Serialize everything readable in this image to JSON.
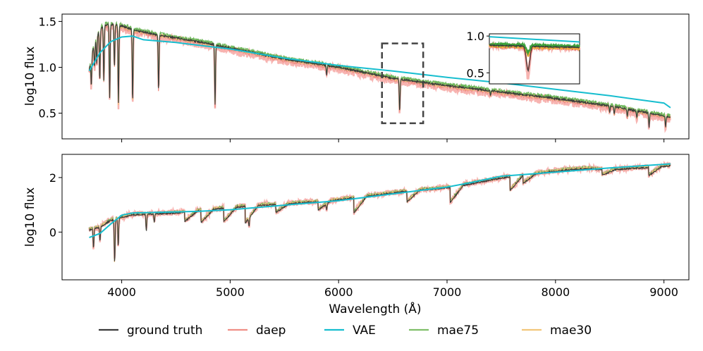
{
  "chart_data": [
    {
      "type": "line",
      "panel": "top",
      "ylabel": "log10 flux",
      "xlim": [
        3450,
        9230
      ],
      "ylim": [
        0.22,
        1.58
      ],
      "xticks": [
        4000,
        5000,
        6000,
        7000,
        8000,
        9000
      ],
      "yticks": [
        {
          "value": 0.5,
          "label": "0.5"
        },
        {
          "value": 1.0,
          "label": "1.0"
        },
        {
          "value": 1.5,
          "label": "1.5"
        }
      ],
      "continuum": {
        "x": [
          3700,
          3750,
          3800,
          3850,
          3900,
          3950,
          4000,
          4050,
          4100,
          4300,
          4500,
          4700,
          5000,
          5500,
          6000,
          6500,
          7000,
          7500,
          8000,
          8500,
          9000,
          9060
        ],
        "y": [
          0.97,
          1.28,
          1.42,
          1.46,
          1.47,
          1.46,
          1.45,
          1.43,
          1.41,
          1.36,
          1.32,
          1.28,
          1.21,
          1.09,
          1.0,
          0.88,
          0.8,
          0.73,
          0.66,
          0.58,
          0.47,
          0.46
        ]
      },
      "absorption_lines": [
        {
          "x": 3720,
          "depth": 0.3
        },
        {
          "x": 3750,
          "depth": 0.28
        },
        {
          "x": 3770,
          "depth": 0.3
        },
        {
          "x": 3798,
          "depth": 0.55
        },
        {
          "x": 3835,
          "depth": 0.6
        },
        {
          "x": 3889,
          "depth": 0.8
        },
        {
          "x": 3933,
          "depth": 0.45
        },
        {
          "x": 3970,
          "depth": 0.85
        },
        {
          "x": 4101,
          "depth": 0.78
        },
        {
          "x": 4340,
          "depth": 0.6
        },
        {
          "x": 4861,
          "depth": 0.65
        },
        {
          "x": 5890,
          "depth": 0.1
        },
        {
          "x": 6563,
          "depth": 0.35
        },
        {
          "x": 7400,
          "depth": 0.05
        },
        {
          "x": 8500,
          "depth": 0.07
        },
        {
          "x": 8542,
          "depth": 0.08
        },
        {
          "x": 8662,
          "depth": 0.08
        },
        {
          "x": 8750,
          "depth": 0.08
        },
        {
          "x": 8863,
          "depth": 0.15
        },
        {
          "x": 9015,
          "depth": 0.12
        }
      ],
      "series": [
        {
          "name": "VAE",
          "x": [
            3700,
            3800,
            3900,
            4000,
            4100,
            4200,
            4500,
            5000,
            5500,
            6000,
            6500,
            7000,
            7500,
            8000,
            8500,
            9000,
            9060
          ],
          "y": [
            0.96,
            1.16,
            1.28,
            1.33,
            1.34,
            1.3,
            1.27,
            1.2,
            1.1,
            1.02,
            0.96,
            0.89,
            0.83,
            0.76,
            0.69,
            0.61,
            0.56
          ]
        }
      ],
      "highlight_box": {
        "x": [
          6400,
          6780
        ],
        "y": [
          0.39,
          1.26
        ]
      },
      "inset": {
        "xlim": [
          6400,
          6780
        ],
        "ylim": [
          0.35,
          1.03
        ],
        "yticks": [
          {
            "value": 0.5,
            "label": "0.5"
          },
          {
            "value": 1.0,
            "label": "1.0"
          }
        ],
        "vae": {
          "x": [
            6400,
            6780
          ],
          "y": [
            0.99,
            0.92
          ]
        }
      }
    },
    {
      "type": "line",
      "panel": "bottom",
      "xlabel": "Wavelength (Å)",
      "ylabel": "log10 flux",
      "xlim": [
        3450,
        9230
      ],
      "ylim": [
        -1.75,
        2.85
      ],
      "xticks": [
        {
          "value": 4000,
          "label": "4000"
        },
        {
          "value": 5000,
          "label": "5000"
        },
        {
          "value": 6000,
          "label": "6000"
        },
        {
          "value": 7000,
          "label": "7000"
        },
        {
          "value": 8000,
          "label": "8000"
        },
        {
          "value": 9000,
          "label": "9000"
        }
      ],
      "yticks": [
        {
          "value": 0,
          "label": "0"
        },
        {
          "value": 2,
          "label": "2"
        }
      ],
      "trend": {
        "x": [
          3700,
          3800,
          3900,
          4000,
          4100,
          4300,
          4500,
          4700,
          4900,
          5100,
          5300,
          5500,
          5700,
          5900,
          6100,
          6300,
          6500,
          6700,
          6900,
          7100,
          7300,
          7500,
          7700,
          7900,
          8100,
          8300,
          8500,
          8700,
          8900,
          9060
        ],
        "y": [
          0.1,
          0.2,
          0.45,
          0.55,
          0.65,
          0.68,
          0.72,
          0.8,
          0.88,
          0.95,
          1.0,
          1.05,
          1.1,
          1.15,
          1.25,
          1.35,
          1.45,
          1.55,
          1.6,
          1.7,
          1.85,
          2.0,
          2.1,
          2.2,
          2.3,
          2.35,
          2.3,
          2.35,
          2.4,
          2.45
        ]
      },
      "bands": [
        {
          "start": 4580,
          "end": 4620,
          "drop": 0.35
        },
        {
          "start": 4730,
          "end": 4770,
          "drop": 0.45
        },
        {
          "start": 4940,
          "end": 4970,
          "drop": 0.5
        },
        {
          "start": 5140,
          "end": 5180,
          "drop": 0.6
        },
        {
          "start": 5420,
          "end": 5450,
          "drop": 0.3
        },
        {
          "start": 5810,
          "end": 5850,
          "drop": 0.3
        },
        {
          "start": 6140,
          "end": 6170,
          "drop": 0.55
        },
        {
          "start": 6630,
          "end": 6660,
          "drop": 0.4
        },
        {
          "start": 7030,
          "end": 7060,
          "drop": 0.55
        },
        {
          "start": 7580,
          "end": 7610,
          "drop": 0.5
        },
        {
          "start": 7700,
          "end": 7720,
          "drop": 0.3
        },
        {
          "start": 8430,
          "end": 8460,
          "drop": 0.2
        },
        {
          "start": 8860,
          "end": 8890,
          "drop": 0.3
        }
      ],
      "absorption_lines": [
        {
          "x": 3740,
          "depth": 0.7
        },
        {
          "x": 3800,
          "depth": 0.5
        },
        {
          "x": 3935,
          "depth": 1.6
        },
        {
          "x": 3968,
          "depth": 1.0
        },
        {
          "x": 4227,
          "depth": 0.6
        },
        {
          "x": 4300,
          "depth": 0.3
        },
        {
          "x": 5175,
          "depth": 0.3
        },
        {
          "x": 5890,
          "depth": 0.2
        }
      ],
      "series": [
        {
          "name": "VAE",
          "x": [
            3700,
            3800,
            3900,
            4000,
            4100,
            4300,
            4500,
            4700,
            5000,
            5300,
            5600,
            6000,
            6400,
            6800,
            7000,
            7200,
            7500,
            8000,
            8500,
            9060
          ],
          "y": [
            -0.2,
            -0.05,
            0.3,
            0.62,
            0.7,
            0.72,
            0.74,
            0.76,
            0.82,
            0.92,
            1.02,
            1.15,
            1.35,
            1.55,
            1.65,
            1.8,
            2.05,
            2.2,
            2.35,
            2.5
          ]
        }
      ]
    }
  ],
  "legend": {
    "placement": "bottom",
    "entries": [
      {
        "label": "ground truth",
        "color": "#3b3b3b"
      },
      {
        "label": "daep",
        "color": "#f08f86"
      },
      {
        "label": "VAE",
        "color": "#17becf"
      },
      {
        "label": "mae75",
        "color": "#7fbf6a"
      },
      {
        "label": "mae30",
        "color": "#f2c67a"
      }
    ]
  },
  "colors": {
    "ground_truth": "#3b3b3b",
    "daep": "#f08f86",
    "daep_band": "#f7b3b0",
    "vae": "#17becf",
    "mae75": "#6fb85c",
    "mae30": "#f2c67a",
    "box": "#444444"
  }
}
